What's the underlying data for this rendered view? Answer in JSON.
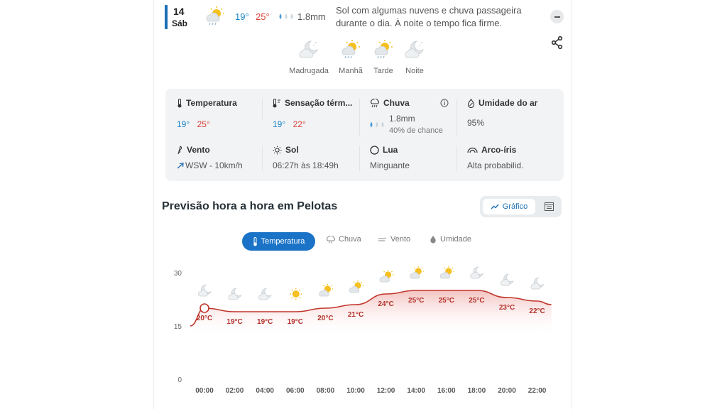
{
  "day": {
    "number": "14",
    "weekday": "Sáb",
    "temp_min": "19°",
    "temp_max": "25°",
    "rain": "1.8mm",
    "summary": "Sol com algumas nuvens e chuva passageira durante o dia. À noite o tempo fica firme.",
    "summary_icon": "partly-sunny-rain-icon"
  },
  "periods": [
    {
      "label": "Madrugada",
      "icon": "cloudy-night-icon"
    },
    {
      "label": "Manhã",
      "icon": "sunny-rain-icon"
    },
    {
      "label": "Tarde",
      "icon": "sunny-rain-icon"
    },
    {
      "label": "Noite",
      "icon": "cloudy-night-icon"
    }
  ],
  "details": {
    "temperatura": {
      "title": "Temperatura",
      "min": "19°",
      "max": "25°"
    },
    "sensacao": {
      "title": "Sensação térm...",
      "min": "19°",
      "max": "22°"
    },
    "chuva": {
      "title": "Chuva",
      "amount": "1.8mm",
      "chance": "40% de chance"
    },
    "umidade": {
      "title": "Umidade do ar",
      "value": "95%"
    },
    "vento": {
      "title": "Vento",
      "value": "WSW - 10km/h"
    },
    "sol": {
      "title": "Sol",
      "value": "06:27h às 18:49h"
    },
    "lua": {
      "title": "Lua",
      "value": "Minguante"
    },
    "arco": {
      "title": "Arco-íris",
      "value": "Alta probabilid."
    }
  },
  "hourly": {
    "title": "Previsão hora a hora em Pelotas",
    "view_chart_label": "Gráfico",
    "tabs": [
      "Temperatura",
      "Chuva",
      "Vento",
      "Umidade"
    ],
    "active_tab": "Temperatura"
  },
  "colors": {
    "accent": "#1a73c7",
    "min_temp": "#1a84c7",
    "max_temp": "#d9423a",
    "line": "#c0352b"
  },
  "chart_data": {
    "type": "area",
    "x": [
      "00:00",
      "02:00",
      "04:00",
      "06:00",
      "08:00",
      "10:00",
      "12:00",
      "14:00",
      "16:00",
      "18:00",
      "20:00",
      "22:00"
    ],
    "series": [
      {
        "values": [
          20,
          19,
          19,
          19,
          20,
          21,
          24,
          25,
          25,
          25,
          23,
          22
        ]
      }
    ],
    "labels": [
      "20°C",
      "19°C",
      "19°C",
      "19°C",
      "20°C",
      "21°C",
      "24°C",
      "25°C",
      "25°C",
      "25°C",
      "23°C",
      "22°C"
    ],
    "icons": [
      "cloudy-night-icon",
      "cloudy-night-icon",
      "cloudy-night-icon",
      "sun-icon",
      "partly-sunny-icon",
      "partly-sunny-icon",
      "partly-sunny-icon",
      "partly-sunny-icon",
      "partly-sunny-icon",
      "cloudy-night-icon",
      "cloudy-night-icon",
      "cloudy-night-icon"
    ],
    "yticks": [
      0,
      15,
      30
    ],
    "ylim": [
      0,
      30
    ],
    "grid": false
  }
}
